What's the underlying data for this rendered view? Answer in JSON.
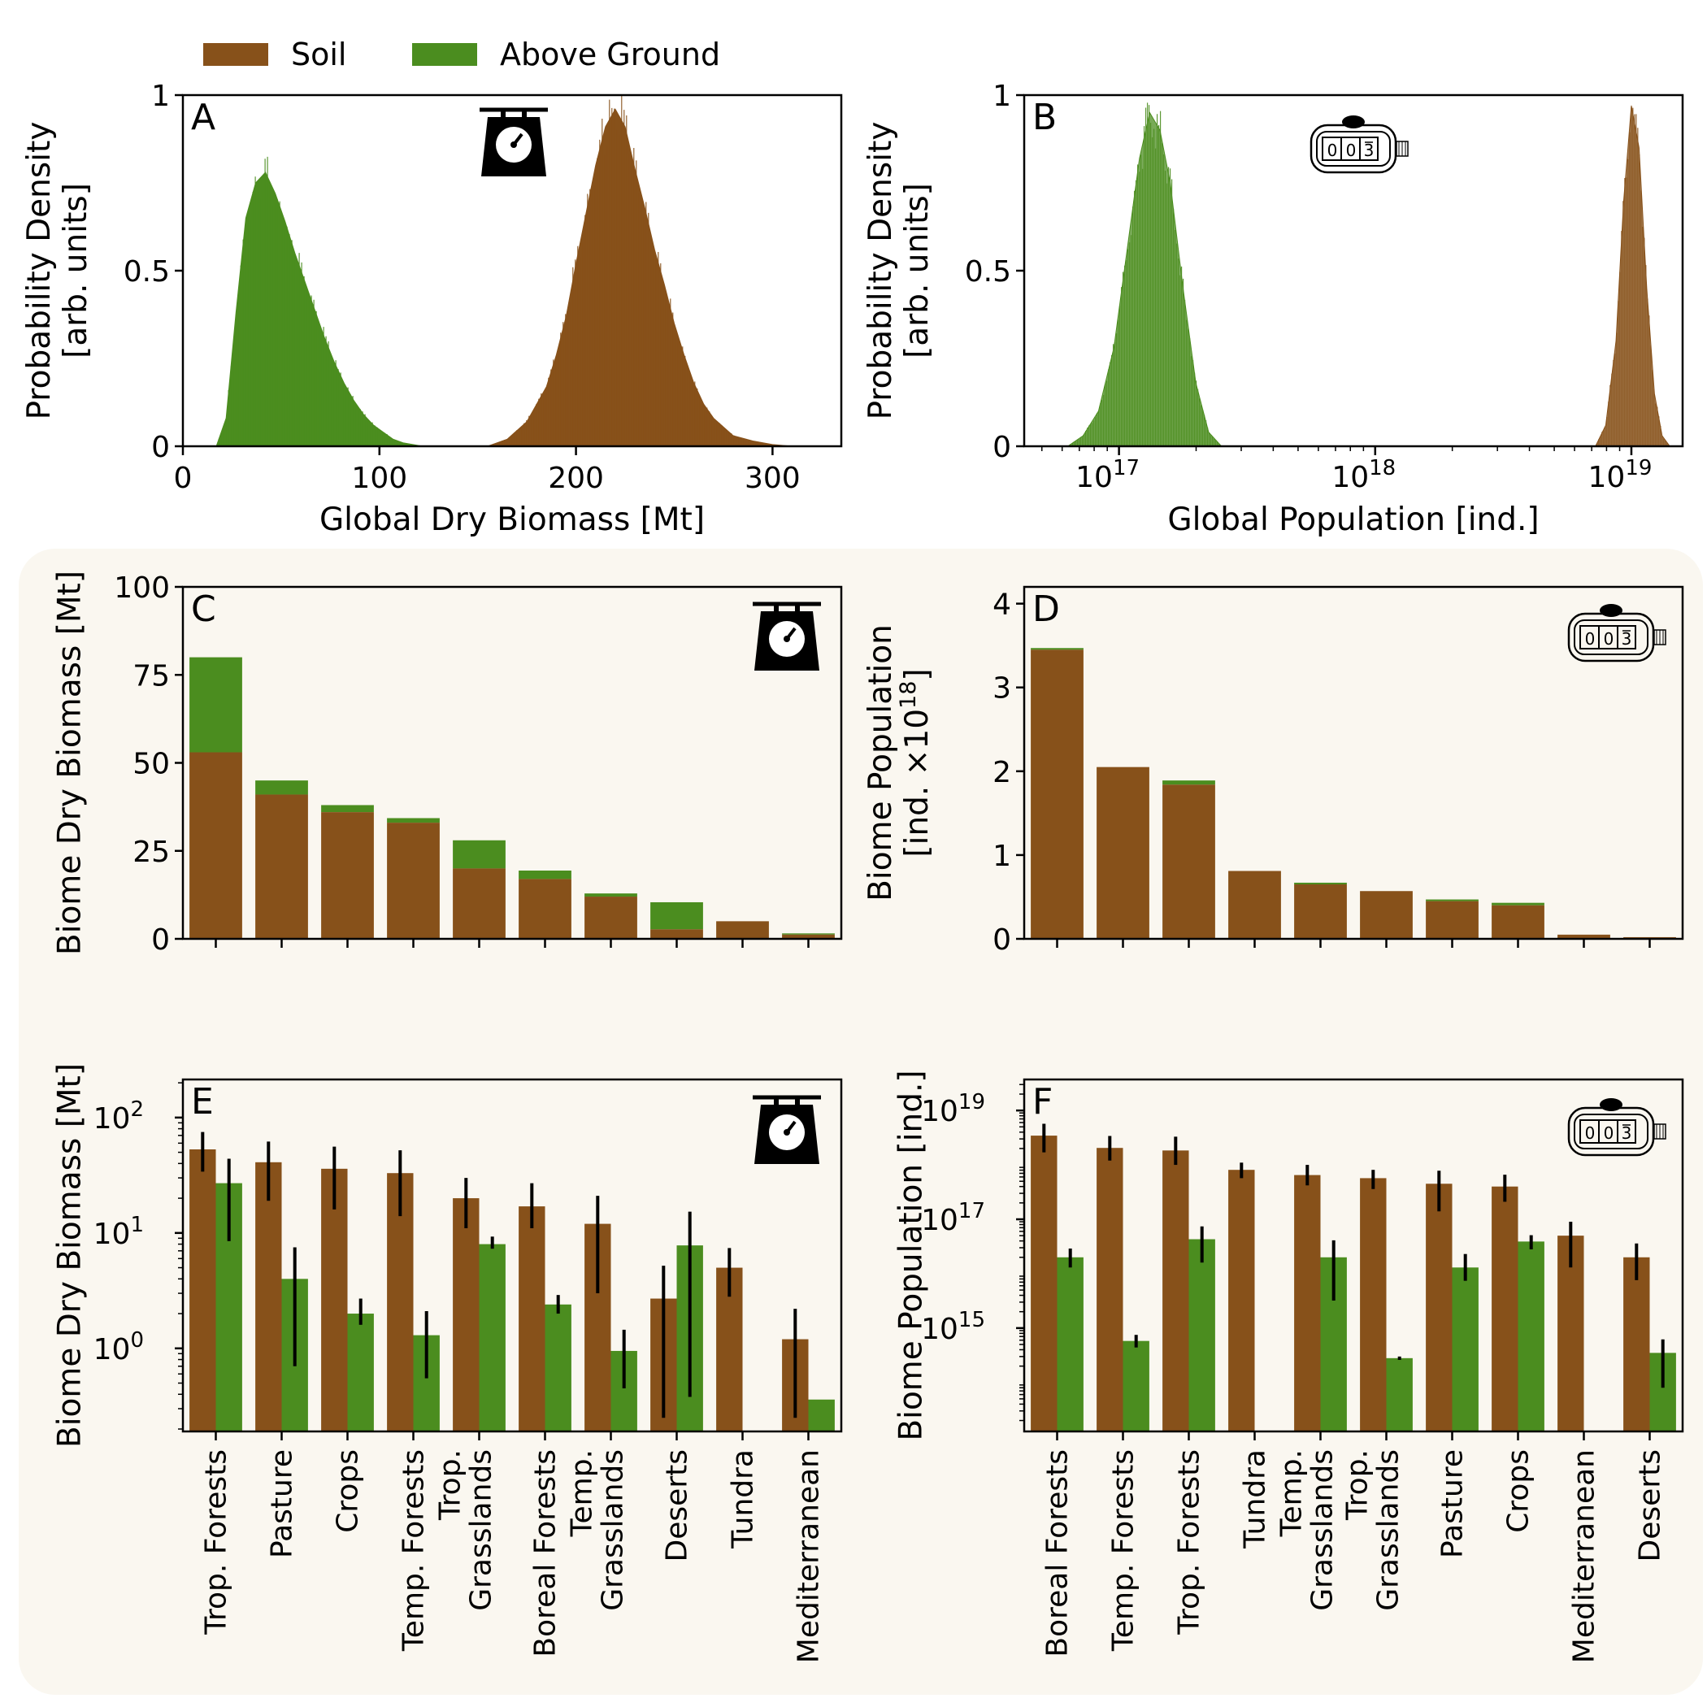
{
  "legend": {
    "soil_label": "Soil",
    "above_label": "Above Ground"
  },
  "colors": {
    "soil": "#87511a",
    "above": "#4b8d1f",
    "panel_bg": "#faf7f0"
  },
  "icons": {
    "biomass": "weighing-scale-icon",
    "population": "tally-counter-icon"
  },
  "chart_data": [
    {
      "panel": "A",
      "type": "area",
      "title": "",
      "xlabel": "Global Dry Biomass [Mt]",
      "ylabel": "Probability Density\n[arb. units]",
      "xlim": [
        0,
        335
      ],
      "ylim": [
        0,
        1.0
      ],
      "xticks": [
        0,
        100,
        200,
        300
      ],
      "yticks": [
        0,
        0.5,
        1
      ],
      "ytick_labels": [
        "0",
        "0.5",
        "1"
      ],
      "series": [
        {
          "key": "above",
          "name": "Above Ground",
          "x": [
            17,
            22,
            27,
            32,
            37,
            42,
            47,
            52,
            57,
            62,
            67,
            72,
            77,
            82,
            87,
            92,
            97,
            102,
            107,
            112,
            117,
            122
          ],
          "values": [
            0.0,
            0.08,
            0.38,
            0.65,
            0.75,
            0.78,
            0.72,
            0.64,
            0.55,
            0.47,
            0.39,
            0.31,
            0.24,
            0.18,
            0.13,
            0.09,
            0.06,
            0.04,
            0.02,
            0.01,
            0.005,
            0.0
          ]
        },
        {
          "key": "soil",
          "name": "Soil",
          "x": [
            155,
            165,
            175,
            185,
            190,
            195,
            200,
            205,
            210,
            215,
            220,
            225,
            230,
            235,
            240,
            245,
            250,
            255,
            260,
            265,
            270,
            280,
            290,
            300,
            310
          ],
          "values": [
            0.0,
            0.02,
            0.07,
            0.17,
            0.26,
            0.37,
            0.52,
            0.66,
            0.8,
            0.91,
            0.96,
            0.91,
            0.79,
            0.68,
            0.56,
            0.46,
            0.35,
            0.26,
            0.18,
            0.12,
            0.08,
            0.03,
            0.015,
            0.005,
            0.0
          ]
        }
      ]
    },
    {
      "panel": "B",
      "type": "area",
      "log_x": true,
      "title": "",
      "xlabel": "Global Population [ind.]",
      "ylabel": "Probability Density\n[arb. units]",
      "xlim_log10": [
        16.63,
        19.2
      ],
      "ylim": [
        0,
        1.0
      ],
      "xticks_log10": [
        17,
        18,
        19
      ],
      "yticks": [
        0,
        0.5,
        1
      ],
      "ytick_labels": [
        "0",
        "0.5",
        "1"
      ],
      "series": [
        {
          "key": "above",
          "name": "Above Ground",
          "x_log10": [
            16.8,
            16.86,
            16.92,
            16.98,
            17.03,
            17.08,
            17.12,
            17.16,
            17.2,
            17.25,
            17.3,
            17.35,
            17.4
          ],
          "values": [
            0.0,
            0.03,
            0.1,
            0.28,
            0.55,
            0.82,
            0.95,
            0.9,
            0.75,
            0.45,
            0.18,
            0.04,
            0.0
          ]
        },
        {
          "key": "soil",
          "name": "Soil",
          "x_log10": [
            18.86,
            18.9,
            18.94,
            18.97,
            19.0,
            19.03,
            19.06,
            19.09,
            19.12,
            19.15
          ],
          "values": [
            0.0,
            0.06,
            0.3,
            0.7,
            0.97,
            0.85,
            0.45,
            0.15,
            0.03,
            0.0
          ]
        }
      ]
    },
    {
      "panel": "C",
      "type": "bar",
      "stacked": true,
      "title": "",
      "ylabel": "Biome Dry Biomass [Mt]",
      "ylim": [
        0,
        100
      ],
      "yticks": [
        0,
        25,
        50,
        75,
        100
      ],
      "categories": [
        "Trop. Forests",
        "Pasture",
        "Crops",
        "Temp. Forests",
        "Trop. Grasslands",
        "Boreal Forests",
        "Temp. Grasslands",
        "Deserts",
        "Tundra",
        "Mediterranean"
      ],
      "series": [
        {
          "key": "soil",
          "name": "Soil",
          "values": [
            53,
            41,
            36,
            33,
            20,
            17,
            12,
            2.7,
            5,
            1.2
          ]
        },
        {
          "key": "above",
          "name": "Above Ground",
          "values": [
            27,
            4,
            2,
            1.3,
            8,
            2.4,
            0.9,
            7.7,
            0,
            0.35
          ]
        }
      ]
    },
    {
      "panel": "D",
      "type": "bar",
      "stacked": true,
      "title": "",
      "ylabel": "Biome Population\n[ind. ×10^18]",
      "ylim": [
        0,
        4.2
      ],
      "yticks": [
        0,
        1,
        2,
        3,
        4
      ],
      "categories": [
        "Boreal Forests",
        "Temp. Forests",
        "Trop. Forests",
        "Tundra",
        "Temp. Grasslands",
        "Trop. Grasslands",
        "Pasture",
        "Crops",
        "Mediterranean",
        "Deserts"
      ],
      "series": [
        {
          "key": "soil",
          "name": "Soil",
          "values": [
            3.45,
            2.05,
            1.84,
            0.81,
            0.65,
            0.57,
            0.45,
            0.4,
            0.05,
            0.02
          ]
        },
        {
          "key": "above",
          "name": "Above Ground",
          "values": [
            0.02,
            0.0,
            0.05,
            0.0,
            0.02,
            0.0,
            0.02,
            0.03,
            0.0,
            0.0
          ]
        }
      ]
    },
    {
      "panel": "E",
      "type": "bar",
      "log_y": true,
      "title": "",
      "ylabel": "Biome Dry Biomass [Mt]",
      "ylim_log10": [
        -0.72,
        2.33
      ],
      "yticks_log10": [
        0,
        1,
        2
      ],
      "categories": [
        "Trop. Forests",
        "Pasture",
        "Crops",
        "Temp. Forests",
        "Trop. Grasslands",
        "Boreal Forests",
        "Temp. Grasslands",
        "Deserts",
        "Tundra",
        "Mediterranean"
      ],
      "series": [
        {
          "key": "soil",
          "name": "Soil",
          "values": [
            53,
            41,
            36,
            33,
            20,
            17,
            12,
            2.7,
            5,
            1.2
          ],
          "err_low": [
            34,
            19,
            16,
            14,
            11,
            11,
            3,
            0.25,
            2.8,
            0.25
          ],
          "err_high": [
            75,
            62,
            56,
            52,
            30,
            27,
            21,
            5.2,
            7.4,
            2.2
          ]
        },
        {
          "key": "above",
          "name": "Above Ground",
          "values": [
            27,
            4,
            2,
            1.3,
            8,
            2.4,
            0.95,
            7.8,
            null,
            0.36
          ],
          "err_low": [
            8.5,
            0.7,
            1.6,
            0.55,
            7.3,
            2.0,
            0.45,
            0.38,
            null,
            null
          ],
          "err_high": [
            44,
            7.5,
            2.7,
            2.1,
            9.3,
            2.9,
            1.45,
            15.3,
            null,
            null
          ]
        }
      ]
    },
    {
      "panel": "F",
      "type": "bar",
      "log_y": true,
      "title": "",
      "ylabel": "Biome Population [ind.]",
      "ylim_log10": [
        13.1,
        19.57
      ],
      "yticks_log10": [
        15,
        17,
        19
      ],
      "categories": [
        "Boreal Forests",
        "Temp. Forests",
        "Trop. Forests",
        "Tundra",
        "Temp. Grasslands",
        "Trop. Grasslands",
        "Pasture",
        "Crops",
        "Mediterranean",
        "Deserts"
      ],
      "series": [
        {
          "key": "soil",
          "name": "Soil",
          "values": [
            3.45e+18,
            2.05e+18,
            1.84e+18,
            8.1e+17,
            6.5e+17,
            5.7e+17,
            4.5e+17,
            4e+17,
            5e+16,
            2e+16
          ],
          "err_low": [
            1.7e+18,
            1.2e+18,
            1e+18,
            5.7e+17,
            4.2e+17,
            3.6e+17,
            1.4e+17,
            2.1e+17,
            1.3e+16,
            7600000000000000.0
          ],
          "err_high": [
            5.7e+18,
            3.4e+18,
            3.3e+18,
            1.1e+18,
            1e+18,
            8.1e+17,
            7.8e+17,
            6.6e+17,
            9e+16,
            3.6e+16
          ]
        },
        {
          "key": "above",
          "name": "Above Ground",
          "values": [
            2e+16,
            580000000000000.0,
            4.3e+16,
            null,
            2e+16,
            280000000000000.0,
            1.3e+16,
            3.9e+16,
            null,
            350000000000000.0
          ],
          "err_low": [
            1.3e+16,
            440000000000000.0,
            1.6e+16,
            null,
            3200000000000000.0,
            260000000000000.0,
            7400000000000000.0,
            2.8e+16,
            null,
            80000000000000.0
          ],
          "err_high": [
            2.9e+16,
            750000000000000.0,
            7.4e+16,
            null,
            4.1e+16,
            300000000000000.0,
            2.3e+16,
            5.1e+16,
            null,
            620000000000000.0
          ]
        }
      ]
    }
  ]
}
